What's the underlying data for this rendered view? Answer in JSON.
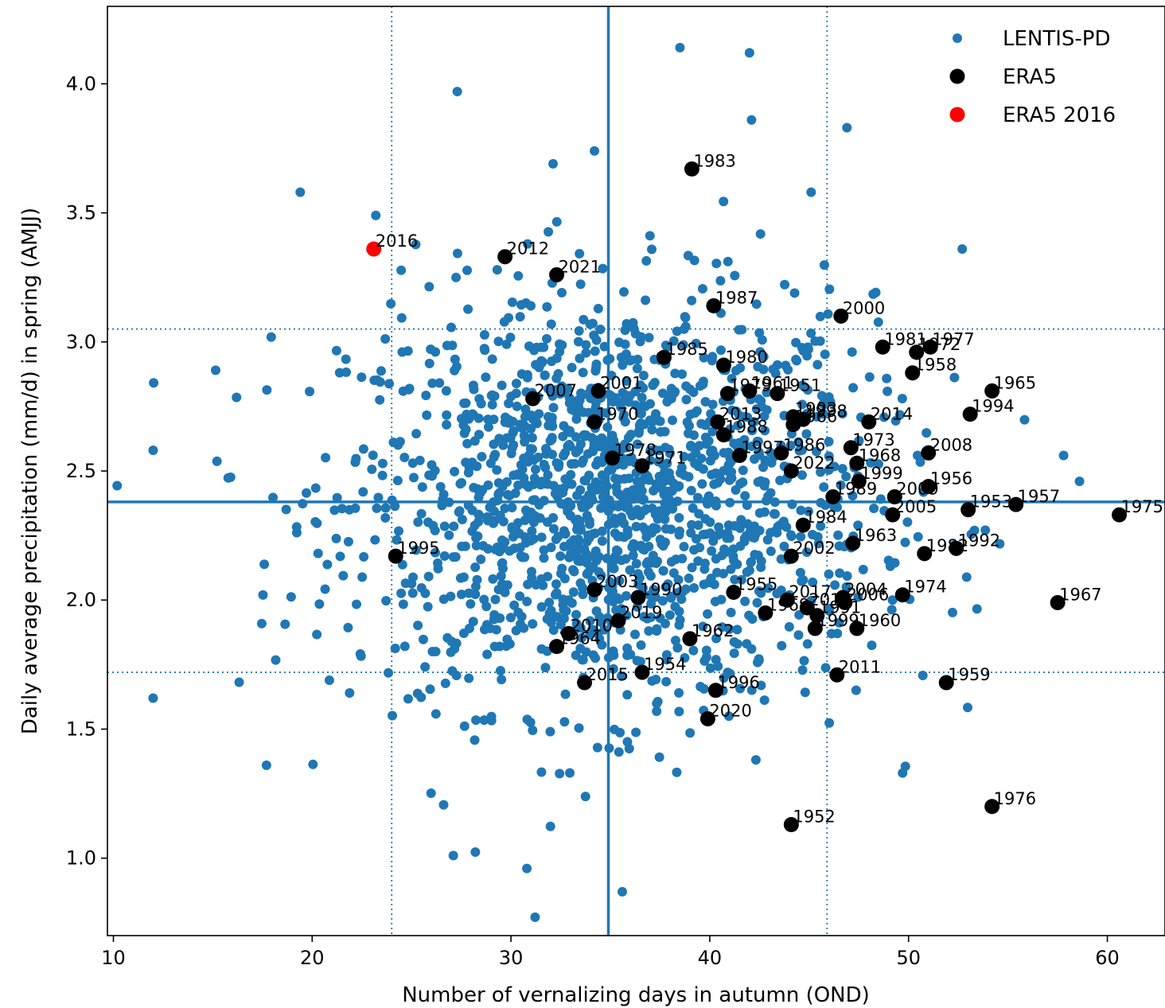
{
  "chart_data": {
    "type": "scatter",
    "xlabel": "Number of vernalizing days in autumn (OND)",
    "ylabel": "Daily average precipitation (mm/d) in spring (AMJJ)",
    "xlim": [
      9.7,
      62.9
    ],
    "ylim": [
      0.7,
      4.3
    ],
    "xticks": [
      10,
      20,
      30,
      40,
      50,
      60
    ],
    "yticks": [
      1.0,
      1.5,
      2.0,
      2.5,
      3.0,
      3.5,
      4.0
    ],
    "xtick_labels": [
      "10",
      "20",
      "30",
      "40",
      "50",
      "60"
    ],
    "ytick_labels": [
      "1.0",
      "1.5",
      "2.0",
      "2.5",
      "3.0",
      "3.5",
      "4.0"
    ],
    "grid": false,
    "legend_position": "top-right",
    "colors": {
      "lentis": "#1f77b4",
      "era5": "#000000",
      "era5_2016": "#ff0000"
    },
    "reference_lines": {
      "median_x": 34.9,
      "median_y": 2.38,
      "x_low": 24.0,
      "x_high": 45.9,
      "y_low": 1.72,
      "y_high": 3.05
    },
    "series": [
      {
        "name": "LENTIS-PD",
        "approximate_point_count": 1600,
        "x_mean": 35.0,
        "x_std": 6.6,
        "y_mean": 2.38,
        "y_std": 0.4,
        "sample_points": [
          [
            38.5,
            4.14
          ],
          [
            42.0,
            4.12
          ],
          [
            27.3,
            3.97
          ],
          [
            46.9,
            3.83
          ],
          [
            42.1,
            3.86
          ],
          [
            34.2,
            3.74
          ],
          [
            19.4,
            3.58
          ],
          [
            45.1,
            3.58
          ],
          [
            12.0,
            2.58
          ],
          [
            12.0,
            1.62
          ],
          [
            17.7,
            1.36
          ],
          [
            27.1,
            1.01
          ],
          [
            30.8,
            0.96
          ],
          [
            35.6,
            0.87
          ],
          [
            57.8,
            2.56
          ],
          [
            58.6,
            2.46
          ],
          [
            49.7,
            1.33
          ],
          [
            52.7,
            3.36
          ],
          [
            23.2,
            3.49
          ]
        ]
      },
      {
        "name": "ERA5",
        "points": [
          {
            "year": "1983",
            "x": 39.1,
            "y": 3.67
          },
          {
            "year": "2012",
            "x": 29.7,
            "y": 3.33
          },
          {
            "year": "2021",
            "x": 32.3,
            "y": 3.26
          },
          {
            "year": "1987",
            "x": 40.2,
            "y": 3.14
          },
          {
            "year": "2000",
            "x": 46.6,
            "y": 3.1
          },
          {
            "year": "1981",
            "x": 48.7,
            "y": 2.98
          },
          {
            "year": "1977",
            "x": 51.1,
            "y": 2.98
          },
          {
            "year": "1972",
            "x": 50.4,
            "y": 2.96
          },
          {
            "year": "1985",
            "x": 37.7,
            "y": 2.94
          },
          {
            "year": "1980",
            "x": 40.7,
            "y": 2.91
          },
          {
            "year": "1958",
            "x": 50.2,
            "y": 2.88
          },
          {
            "year": "1965",
            "x": 54.2,
            "y": 2.81
          },
          {
            "year": "2001",
            "x": 34.4,
            "y": 2.81
          },
          {
            "year": "1979",
            "x": 40.9,
            "y": 2.8
          },
          {
            "year": "1961",
            "x": 42.0,
            "y": 2.81
          },
          {
            "year": "1951",
            "x": 43.4,
            "y": 2.8
          },
          {
            "year": "2007",
            "x": 31.1,
            "y": 2.78
          },
          {
            "year": "1994",
            "x": 53.1,
            "y": 2.72
          },
          {
            "year": "1993",
            "x": 44.2,
            "y": 2.71
          },
          {
            "year": "1998",
            "x": 44.7,
            "y": 2.7
          },
          {
            "year": "1966",
            "x": 44.2,
            "y": 2.68
          },
          {
            "year": "1970",
            "x": 34.2,
            "y": 2.69
          },
          {
            "year": "2013",
            "x": 40.4,
            "y": 2.69
          },
          {
            "year": "2014",
            "x": 48.0,
            "y": 2.69
          },
          {
            "year": "1988",
            "x": 40.7,
            "y": 2.64
          },
          {
            "year": "1973",
            "x": 47.1,
            "y": 2.59
          },
          {
            "year": "2008",
            "x": 51.0,
            "y": 2.57
          },
          {
            "year": "1997",
            "x": 41.5,
            "y": 2.56
          },
          {
            "year": "1986",
            "x": 43.6,
            "y": 2.57
          },
          {
            "year": "1978",
            "x": 35.1,
            "y": 2.55
          },
          {
            "year": "1968",
            "x": 47.4,
            "y": 2.53
          },
          {
            "year": "1971",
            "x": 36.6,
            "y": 2.52
          },
          {
            "year": "2022",
            "x": 44.1,
            "y": 2.5
          },
          {
            "year": "1999",
            "x": 47.5,
            "y": 2.46
          },
          {
            "year": "1956",
            "x": 51.0,
            "y": 2.44
          },
          {
            "year": "1989",
            "x": 46.2,
            "y": 2.4
          },
          {
            "year": "2009",
            "x": 49.3,
            "y": 2.4
          },
          {
            "year": "1953",
            "x": 53.0,
            "y": 2.35
          },
          {
            "year": "1957",
            "x": 55.4,
            "y": 2.37
          },
          {
            "year": "1975",
            "x": 60.6,
            "y": 2.33
          },
          {
            "year": "2005",
            "x": 49.2,
            "y": 2.33
          },
          {
            "year": "1984",
            "x": 44.7,
            "y": 2.29
          },
          {
            "year": "1963",
            "x": 47.2,
            "y": 2.22
          },
          {
            "year": "1992",
            "x": 52.4,
            "y": 2.2
          },
          {
            "year": "1982",
            "x": 50.8,
            "y": 2.18
          },
          {
            "year": "1995",
            "x": 24.2,
            "y": 2.17
          },
          {
            "year": "2002",
            "x": 44.1,
            "y": 2.17
          },
          {
            "year": "2003",
            "x": 34.2,
            "y": 2.04
          },
          {
            "year": "1955",
            "x": 41.2,
            "y": 2.03
          },
          {
            "year": "1990",
            "x": 36.4,
            "y": 2.01
          },
          {
            "year": "2004",
            "x": 46.7,
            "y": 2.01
          },
          {
            "year": "1974",
            "x": 49.7,
            "y": 2.02
          },
          {
            "year": "2017",
            "x": 43.9,
            "y": 2.0
          },
          {
            "year": "2006",
            "x": 46.8,
            "y": 1.99
          },
          {
            "year": "1967",
            "x": 57.5,
            "y": 1.99
          },
          {
            "year": "2018",
            "x": 44.9,
            "y": 1.97
          },
          {
            "year": "1969",
            "x": 42.8,
            "y": 1.95
          },
          {
            "year": "1991",
            "x": 45.4,
            "y": 1.94
          },
          {
            "year": "2019",
            "x": 35.4,
            "y": 1.92
          },
          {
            "year": "1960",
            "x": 47.4,
            "y": 1.89
          },
          {
            "year": "1999b",
            "x": 45.3,
            "y": 1.89
          },
          {
            "year": "2010",
            "x": 32.9,
            "y": 1.87
          },
          {
            "year": "1962",
            "x": 39.0,
            "y": 1.85
          },
          {
            "year": "1964",
            "x": 32.3,
            "y": 1.82
          },
          {
            "year": "1954",
            "x": 36.6,
            "y": 1.72
          },
          {
            "year": "2011",
            "x": 46.4,
            "y": 1.71
          },
          {
            "year": "1959",
            "x": 51.9,
            "y": 1.68
          },
          {
            "year": "2015",
            "x": 33.7,
            "y": 1.68
          },
          {
            "year": "1996",
            "x": 40.3,
            "y": 1.65
          },
          {
            "year": "2020",
            "x": 39.9,
            "y": 1.54
          },
          {
            "year": "1976",
            "x": 54.2,
            "y": 1.2
          },
          {
            "year": "1952",
            "x": 44.1,
            "y": 1.13
          }
        ]
      },
      {
        "name": "ERA5 2016",
        "points": [
          {
            "year": "2016",
            "x": 23.1,
            "y": 3.36
          }
        ]
      }
    ]
  }
}
